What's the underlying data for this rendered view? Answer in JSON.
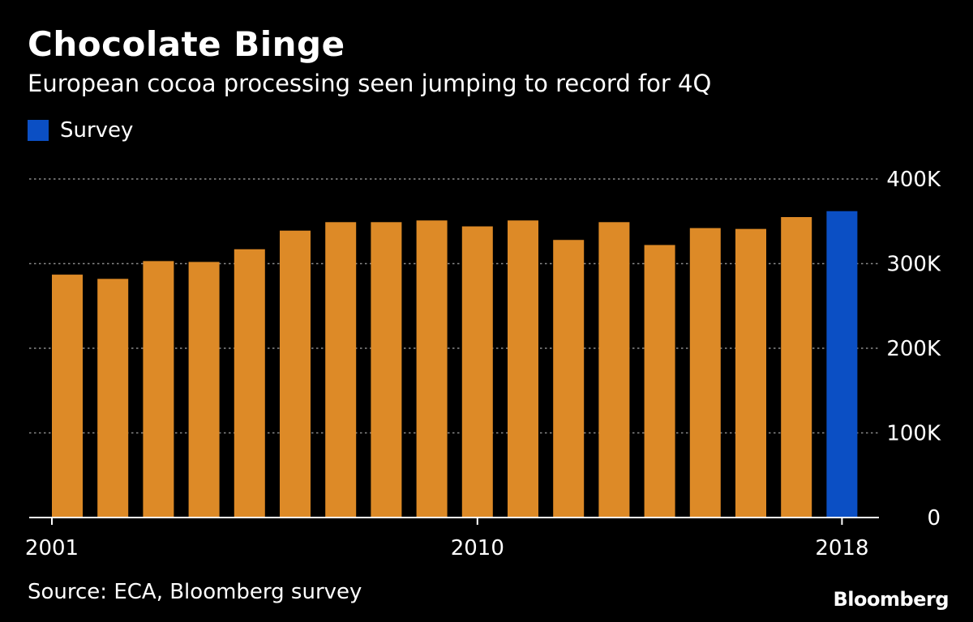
{
  "header": {
    "title": "Chocolate Binge",
    "subtitle": "European cocoa processing seen jumping to record for 4Q"
  },
  "legend": {
    "label": "Survey",
    "color": "#0b4fc4"
  },
  "footer": {
    "source": "Source: ECA, Bloomberg survey",
    "brand": "Bloomberg"
  },
  "colors": {
    "background": "#000000",
    "bar": "#dd8a27",
    "survey_bar": "#0b4fc4",
    "grid": "#8a8a8a",
    "axis": "#ffffff",
    "text": "#ffffff"
  },
  "chart_data": {
    "type": "bar",
    "title": "Chocolate Binge",
    "subtitle": "European cocoa processing seen jumping to record for 4Q",
    "categories": [
      "2001",
      "2002",
      "2003",
      "2004",
      "2005",
      "2006",
      "2007",
      "2008",
      "2009",
      "2010",
      "2011",
      "2012",
      "2013",
      "2014",
      "2015",
      "2016",
      "2017",
      "2018"
    ],
    "series": [
      {
        "values": [
          287000,
          282000,
          303000,
          302000,
          317000,
          339000,
          349000,
          349000,
          351000,
          344000,
          351000,
          328000,
          349000,
          322000,
          342000,
          341000,
          355000,
          0
        ]
      },
      {
        "name": "Survey",
        "values": [
          0,
          0,
          0,
          0,
          0,
          0,
          0,
          0,
          0,
          0,
          0,
          0,
          0,
          0,
          0,
          0,
          0,
          362000
        ]
      }
    ],
    "x_tick_labels": [
      "2001",
      "2010",
      "2018"
    ],
    "y_ticks": [
      0,
      100000,
      200000,
      300000,
      400000
    ],
    "y_tick_labels": [
      "0",
      "100K",
      "200K",
      "300K",
      "400K"
    ],
    "ylim": [
      0,
      400000
    ],
    "grid": true,
    "y_axis_side": "right",
    "legend_position": "top-left"
  }
}
